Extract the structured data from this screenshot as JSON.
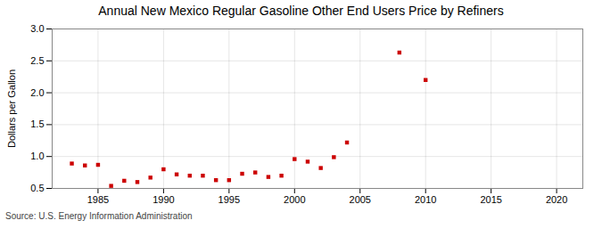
{
  "chart_data": {
    "type": "scatter",
    "title": "Annual New Mexico Regular Gasoline Other End Users Price by Refiners",
    "ylabel": "Dollars per Gallon",
    "annotations": [
      "Source: U.S. Energy Information Administration"
    ],
    "x": [
      1983,
      1984,
      1985,
      1986,
      1987,
      1988,
      1989,
      1990,
      1991,
      1992,
      1993,
      1994,
      1995,
      1996,
      1997,
      1998,
      1999,
      2000,
      2001,
      2002,
      2003,
      2004,
      2008,
      2010
    ],
    "values": [
      0.89,
      0.86,
      0.87,
      0.54,
      0.62,
      0.6,
      0.67,
      0.8,
      0.72,
      0.7,
      0.7,
      0.63,
      0.63,
      0.73,
      0.75,
      0.68,
      0.7,
      0.96,
      0.92,
      0.82,
      0.99,
      1.22,
      2.63,
      2.2
    ],
    "color": "#cc0000",
    "marker": "square",
    "xlim": [
      1981.5,
      2022
    ],
    "ylim": [
      0.5,
      3.0
    ],
    "xticks": [
      1985,
      1990,
      1995,
      2000,
      2005,
      2010,
      2015,
      2020
    ],
    "yticks": [
      0.5,
      {
        "value": 1,
        "label": "1.0"
      },
      1.5,
      {
        "value": 2,
        "label": "2.0"
      },
      2.5,
      {
        "value": 3,
        "label": "3.0"
      }
    ],
    "grid": true
  }
}
